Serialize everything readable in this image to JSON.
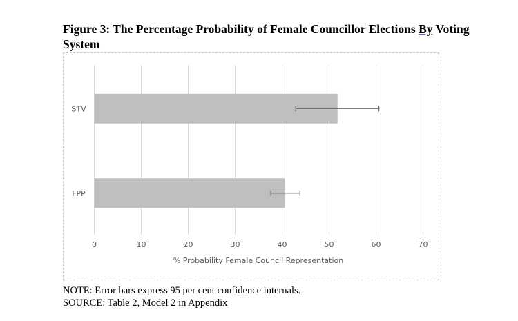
{
  "figure": {
    "title_main": "Figure 3: The Percentage Probability of Female Councillor Elections ",
    "title_underlined": "By",
    "title_rest": " Voting System"
  },
  "notes": {
    "note": "NOTE: Error bars express 95 per cent confidence internals.",
    "source": "SOURCE: Table 2, Model 2 in Appendix"
  },
  "chart_data": {
    "type": "bar",
    "orientation": "horizontal",
    "title": "Figure 3: The Percentage Probability of Female Councillor Elections By Voting System",
    "categories": [
      "STV",
      "FPP"
    ],
    "values": [
      51.8,
      40.6
    ],
    "error_bars": [
      {
        "category": "STV",
        "low": 42.9,
        "high": 60.6
      },
      {
        "category": "FPP",
        "low": 37.6,
        "high": 43.8
      }
    ],
    "xlabel": "% Probability Female Council Representation",
    "ylabel": "",
    "xlim": [
      0,
      70
    ],
    "xticks": [
      0,
      10,
      20,
      30,
      40,
      50,
      60,
      70
    ],
    "grid": true,
    "legend": "none",
    "colors": {
      "bar": "#bfbfbf",
      "grid": "#d9d9d9",
      "error": "#6e6e6e",
      "text": "#595959"
    }
  }
}
